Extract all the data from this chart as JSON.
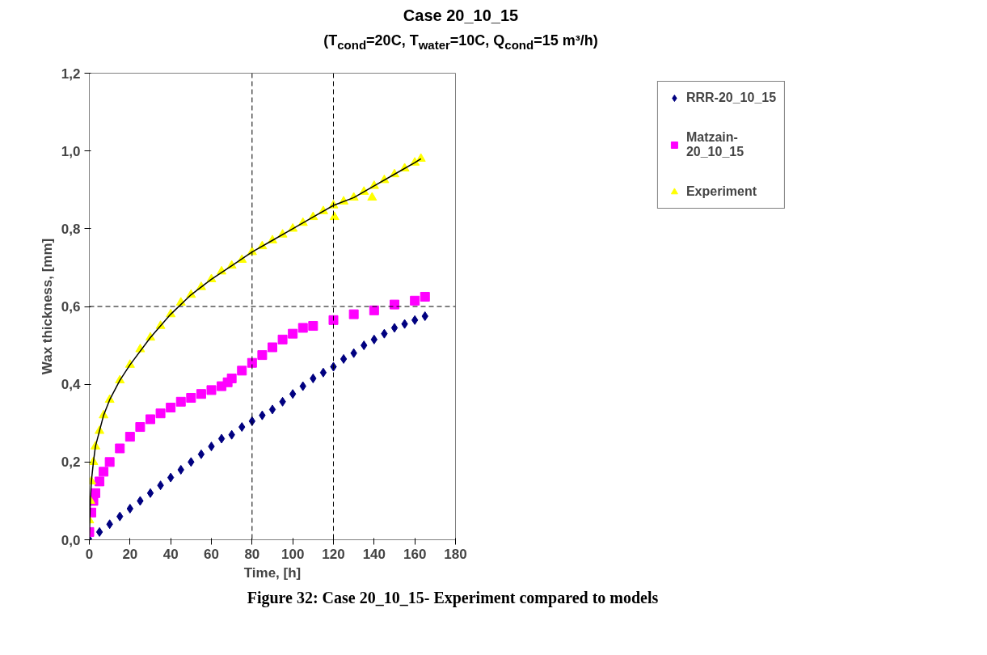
{
  "chart_data": {
    "type": "scatter",
    "title": "Case 20_10_15",
    "subtitle": "(T$_{cond}$=20C, T$_{water}$=10C, Q$_{cond}$=15 m³/h)",
    "xlabel": "Time, [h]",
    "ylabel": "Wax thickness, [mm]",
    "annotations": [
      "Figure 32: Case 20_10_15- Experiment compared to models"
    ],
    "xlim": [
      0,
      180
    ],
    "xticks": [
      0,
      20,
      40,
      60,
      80,
      100,
      120,
      140,
      160,
      180
    ],
    "ylim": [
      0,
      1.2
    ],
    "yticks": [
      {
        "value": 0,
        "label": "0,0"
      },
      {
        "value": 0.2,
        "label": "0,2"
      },
      {
        "value": 0.4,
        "label": "0,4"
      },
      {
        "value": 0.6,
        "label": "0,6"
      },
      {
        "value": 0.8,
        "label": "0,8"
      },
      {
        "value": 1.0,
        "label": "1,0"
      },
      {
        "value": 1.2,
        "label": "1,2"
      }
    ],
    "grid": false,
    "legend": "right",
    "ref_lines": [
      {
        "axis": "x",
        "value": 80,
        "label": null,
        "color": "#000000",
        "line_style": "dashed"
      },
      {
        "axis": "x",
        "value": 120,
        "label": null,
        "color": "#000000",
        "line_style": "dashed"
      },
      {
        "axis": "y",
        "value": 0.6,
        "label": null,
        "color": "#000000",
        "line_style": "dashed"
      }
    ],
    "series": [
      {
        "name": "RRR-20_10_15",
        "color": "#000080",
        "marker": "diamond",
        "x": [
          0,
          5,
          10,
          15,
          20,
          25,
          30,
          35,
          40,
          45,
          50,
          55,
          60,
          65,
          70,
          75,
          80,
          85,
          90,
          95,
          100,
          105,
          110,
          115,
          120,
          125,
          130,
          135,
          140,
          145,
          150,
          155,
          160,
          165
        ],
        "values": [
          0,
          0.02,
          0.04,
          0.06,
          0.08,
          0.1,
          0.12,
          0.14,
          0.16,
          0.18,
          0.2,
          0.22,
          0.24,
          0.26,
          0.27,
          0.29,
          0.305,
          0.32,
          0.335,
          0.355,
          0.375,
          0.395,
          0.415,
          0.43,
          0.445,
          0.465,
          0.48,
          0.5,
          0.515,
          0.53,
          0.545,
          0.555,
          0.565,
          0.575
        ]
      },
      {
        "name": "Matzain-\n20_10_15",
        "color": "#ff00ff",
        "marker": "square",
        "x": [
          0,
          1,
          2,
          3,
          5,
          7,
          10,
          15,
          20,
          25,
          30,
          35,
          40,
          45,
          50,
          55,
          60,
          65,
          68,
          70,
          75,
          80,
          85,
          90,
          95,
          100,
          105,
          110,
          120,
          130,
          140,
          150,
          160,
          165
        ],
        "values": [
          0.02,
          0.07,
          0.1,
          0.12,
          0.15,
          0.175,
          0.2,
          0.235,
          0.265,
          0.29,
          0.31,
          0.325,
          0.34,
          0.355,
          0.365,
          0.375,
          0.385,
          0.395,
          0.405,
          0.415,
          0.435,
          0.455,
          0.475,
          0.495,
          0.515,
          0.53,
          0.545,
          0.55,
          0.565,
          0.58,
          0.59,
          0.605,
          0.615,
          0.625
        ]
      },
      {
        "name": "Experiment",
        "color": "#ffff00",
        "marker": "triangle",
        "x": [
          0,
          0.5,
          1,
          2,
          3,
          5,
          7,
          10,
          15,
          20,
          25,
          30,
          35,
          40,
          45,
          50,
          55,
          60,
          65,
          70,
          75,
          80,
          85,
          90,
          95,
          100,
          105,
          110,
          115,
          120,
          120.5,
          125,
          130,
          135,
          139,
          140,
          145,
          150,
          155,
          160,
          163
        ],
        "values": [
          0.05,
          0.1,
          0.15,
          0.2,
          0.24,
          0.28,
          0.32,
          0.36,
          0.41,
          0.45,
          0.49,
          0.52,
          0.55,
          0.58,
          0.61,
          0.63,
          0.65,
          0.67,
          0.69,
          0.705,
          0.72,
          0.74,
          0.755,
          0.77,
          0.785,
          0.8,
          0.815,
          0.83,
          0.845,
          0.86,
          0.83,
          0.87,
          0.88,
          0.895,
          0.88,
          0.91,
          0.925,
          0.94,
          0.955,
          0.97,
          0.98
        ]
      },
      {
        "type": "line",
        "color": "#000000",
        "x": [
          0,
          0.5,
          1,
          2,
          3,
          5,
          7,
          10,
          15,
          20,
          30,
          40,
          50,
          60,
          70,
          80,
          90,
          100,
          110,
          120,
          130,
          140,
          150,
          160,
          163
        ],
        "values": [
          0.0,
          0.1,
          0.15,
          0.2,
          0.24,
          0.28,
          0.32,
          0.36,
          0.41,
          0.45,
          0.52,
          0.58,
          0.63,
          0.67,
          0.705,
          0.74,
          0.77,
          0.8,
          0.83,
          0.86,
          0.88,
          0.91,
          0.94,
          0.97,
          0.98
        ]
      }
    ]
  }
}
